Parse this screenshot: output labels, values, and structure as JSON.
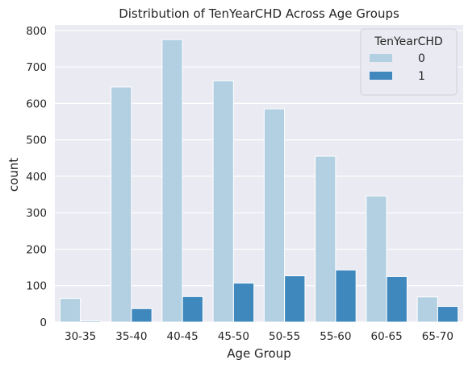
{
  "chart_data": {
    "type": "bar",
    "title": "Distribution of TenYearCHD Across Age Groups",
    "xlabel": "Age Group",
    "ylabel": "count",
    "categories": [
      "30-35",
      "35-40",
      "40-45",
      "45-50",
      "50-55",
      "55-60",
      "60-65",
      "65-70"
    ],
    "series": [
      {
        "name": "0",
        "color": "#b3d0e3",
        "values": [
          65,
          645,
          775,
          662,
          585,
          455,
          346,
          69
        ]
      },
      {
        "name": "1",
        "color": "#3f88bd",
        "values": [
          3,
          37,
          70,
          107,
          127,
          143,
          125,
          43
        ]
      }
    ],
    "ylim": [
      0,
      815
    ],
    "yticks": [
      0,
      100,
      200,
      300,
      400,
      500,
      600,
      700,
      800
    ],
    "grid": true,
    "legend": {
      "title": "TenYearCHD",
      "placement": "top-right"
    },
    "background": "#eaeaf2",
    "grid_color": "#ffffff"
  }
}
